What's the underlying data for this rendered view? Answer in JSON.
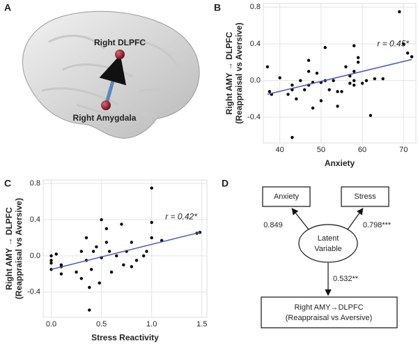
{
  "panel_a": {
    "label": "A",
    "regions": [
      "Right DLPFC",
      "Right Amygdala"
    ]
  },
  "chart_data": [
    {
      "type": "scatter",
      "panel": "B",
      "x_label": "Anxiety",
      "y_label": [
        "Right AMY → DLPFC",
        "(Reappraisal vs Aversive)"
      ],
      "annotation": "r = 0.45*",
      "color": "#000000",
      "grid": true,
      "xlim": [
        36,
        73
      ],
      "ylim": [
        -0.68,
        0.84
      ],
      "xticks": [
        40,
        50,
        60,
        70
      ],
      "yticks": [
        -0.4,
        {
          "value": 0,
          "label": "0.0"
        },
        0.4,
        0.8
      ],
      "x": [
        37,
        37.5,
        38,
        40,
        42,
        43,
        43,
        43,
        44,
        45,
        46,
        47,
        47,
        47,
        48,
        48,
        49,
        50,
        50,
        51,
        51,
        52,
        53,
        54,
        54,
        55,
        56,
        57,
        57,
        58,
        58,
        58,
        58,
        59,
        59,
        60,
        61,
        62,
        63,
        65,
        69,
        70,
        71,
        72
      ],
      "y": [
        0.15,
        -0.12,
        -0.15,
        0.03,
        -0.15,
        -0.05,
        -0.1,
        -0.62,
        -0.2,
        0.0,
        -0.1,
        0.22,
        0.1,
        -0.05,
        -0.02,
        -0.3,
        0.08,
        -0.02,
        -0.22,
        0.36,
        0.0,
        -0.1,
        0.0,
        -0.28,
        -0.12,
        -0.12,
        0.15,
        -0.03,
        0.05,
        0.38,
        0.1,
        0.0,
        -0.05,
        0.25,
        0.2,
        -0.03,
        0.0,
        -0.38,
        0.02,
        0.02,
        0.75,
        0.4,
        0.3,
        0.26
      ],
      "fit": {
        "x": [
          37,
          72
        ],
        "y": [
          -0.15,
          0.23
        ],
        "color": "#4a5aa8"
      }
    },
    {
      "type": "scatter",
      "panel": "C",
      "x_label": "Stress Reactivity",
      "y_label": [
        "Right AMY → DLPFC",
        "(Reappraisal vs Aversive)"
      ],
      "annotation": "r = 0.42*",
      "color": "#000000",
      "grid": true,
      "xlim": [
        -0.08,
        1.55
      ],
      "ylim": [
        -0.68,
        0.84
      ],
      "xticks": [
        {
          "value": 0,
          "label": "0.0"
        },
        0.5,
        {
          "value": 1,
          "label": "1.0"
        },
        1.5
      ],
      "yticks": [
        -0.4,
        {
          "value": 0,
          "label": "0.0"
        },
        0.4,
        0.8
      ],
      "x": [
        0,
        0,
        0,
        0,
        0.05,
        0.1,
        0.1,
        0.1,
        0.25,
        0.3,
        0.3,
        0.35,
        0.35,
        0.38,
        0.38,
        0.4,
        0.42,
        0.45,
        0.48,
        0.5,
        0.5,
        0.55,
        0.55,
        0.58,
        0.6,
        0.65,
        0.7,
        0.72,
        0.75,
        0.8,
        0.8,
        0.85,
        0.92,
        0.95,
        1.0,
        1.0,
        1.0,
        1.1,
        1.45,
        1.48
      ],
      "y": [
        0.0,
        -0.05,
        -0.08,
        -0.15,
        0.02,
        -0.1,
        -0.2,
        -0.12,
        -0.18,
        0.05,
        -0.25,
        -0.05,
        0.2,
        -0.35,
        -0.6,
        -0.15,
        0.05,
        0.1,
        -0.3,
        0.4,
        -0.02,
        0.3,
        0.15,
        0.05,
        -0.18,
        0.0,
        0.35,
        -0.1,
        0.05,
        0.15,
        -0.12,
        -0.05,
        0.0,
        0.05,
        0.75,
        0.37,
        0.2,
        0.17,
        0.25,
        0.26
      ],
      "fit": {
        "x": [
          0,
          1.48
        ],
        "y": [
          -0.15,
          0.26
        ],
        "color": "#4a5aa8"
      }
    }
  ],
  "panel_d": {
    "label": "D",
    "nodes": [
      {
        "lines": [
          "Anxiety"
        ]
      },
      {
        "lines": [
          "Stress"
        ]
      },
      {
        "lines": [
          "Latent",
          "Variable"
        ]
      },
      {
        "lines": [
          "Right AMY→DLPFC",
          "(Reappraisal vs Aversive)"
        ]
      }
    ],
    "edges": [
      {
        "label": "0.849"
      },
      {
        "label": "0.798***"
      },
      {
        "label": "0.532**"
      }
    ]
  }
}
